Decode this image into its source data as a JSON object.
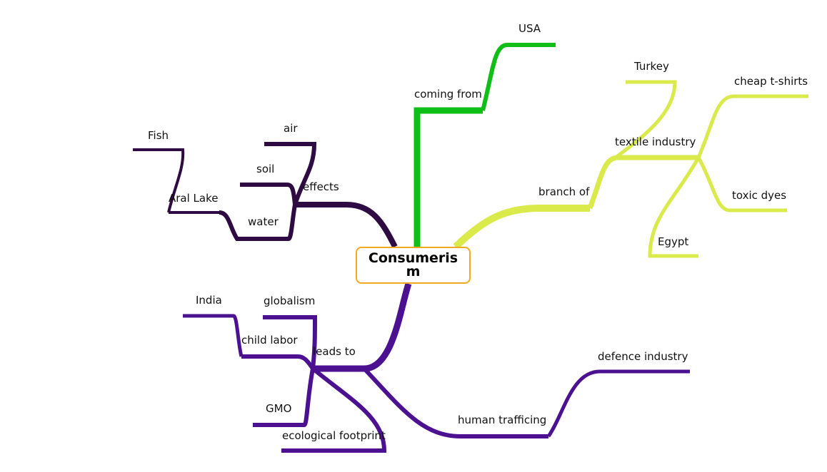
{
  "root": {
    "label": "Consumerism",
    "border_color": "#f2a922"
  },
  "colors": {
    "effects": "#2f0b43",
    "coming_from": "#0fbf18",
    "branch_of": "#d9ea4a",
    "leads_to": "#4b1190"
  },
  "branches": {
    "effects": {
      "label": "effects",
      "children": {
        "air": "air",
        "soil": "soil",
        "water": "water",
        "aral_lake": "Aral Lake",
        "fish": "Fish"
      }
    },
    "coming_from": {
      "label": "coming from",
      "children": {
        "usa": "USA"
      }
    },
    "branch_of": {
      "label": "branch of",
      "children": {
        "textile_industry": "textile industry",
        "turkey": "Turkey",
        "cheap_tshirts": "cheap t-shirts",
        "toxic_dyes": "toxic dyes",
        "egypt": "Egypt"
      }
    },
    "leads_to": {
      "label": "leads to",
      "children": {
        "globalism": "globalism",
        "child_labor": "child labor",
        "india": "India",
        "gmo": "GMO",
        "ecological_footprint": "ecological footprint",
        "human_trafficing": "human trafficing",
        "defence_industry": "defence industry"
      }
    }
  }
}
